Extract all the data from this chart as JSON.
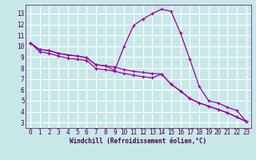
{
  "xlabel": "Windchill (Refroidissement éolien,°C)",
  "bg_color": "#c8e8e8",
  "line_color": "#990099",
  "grid_color": "#ffffff",
  "xlim": [
    -0.5,
    23.5
  ],
  "ylim": [
    2.5,
    13.8
  ],
  "xticks": [
    0,
    1,
    2,
    3,
    4,
    5,
    6,
    7,
    8,
    9,
    10,
    11,
    12,
    13,
    14,
    15,
    16,
    17,
    18,
    19,
    20,
    21,
    22,
    23
  ],
  "yticks": [
    3,
    4,
    5,
    6,
    7,
    8,
    9,
    10,
    11,
    12,
    13
  ],
  "series1_x": [
    0,
    1,
    2,
    3,
    4,
    5,
    6,
    7,
    8,
    9,
    10,
    11,
    12,
    13,
    14,
    15,
    16,
    17,
    18,
    19,
    20,
    21,
    22,
    23
  ],
  "series1_y": [
    10.3,
    9.7,
    9.6,
    9.35,
    9.2,
    9.1,
    8.95,
    8.3,
    8.2,
    8.1,
    7.85,
    7.7,
    7.6,
    7.5,
    7.45,
    6.5,
    5.9,
    5.2,
    4.8,
    4.5,
    4.2,
    3.9,
    3.5,
    3.1
  ],
  "series2_x": [
    0,
    1,
    2,
    3,
    4,
    5,
    6,
    7,
    8,
    9,
    10,
    11,
    12,
    13,
    14,
    15,
    16,
    17,
    18,
    19,
    20,
    21,
    22,
    23
  ],
  "series2_y": [
    10.3,
    9.7,
    9.6,
    9.35,
    9.2,
    9.1,
    8.95,
    8.3,
    8.2,
    7.8,
    10.0,
    11.9,
    12.5,
    13.0,
    13.4,
    13.2,
    11.2,
    8.8,
    6.3,
    5.0,
    4.8,
    4.4,
    4.1,
    3.1
  ],
  "series3_x": [
    0,
    1,
    2,
    3,
    4,
    5,
    6,
    7,
    8,
    9,
    10,
    11,
    12,
    13,
    14,
    15,
    16,
    17,
    18,
    19,
    20,
    21,
    22,
    23
  ],
  "series3_y": [
    10.3,
    9.5,
    9.35,
    9.1,
    8.9,
    8.8,
    8.7,
    7.95,
    7.85,
    7.7,
    7.5,
    7.35,
    7.2,
    7.1,
    7.45,
    6.5,
    5.9,
    5.2,
    4.8,
    4.5,
    4.2,
    3.9,
    3.5,
    3.1
  ],
  "tick_fontsize": 5.5,
  "xlabel_fontsize": 5.5
}
